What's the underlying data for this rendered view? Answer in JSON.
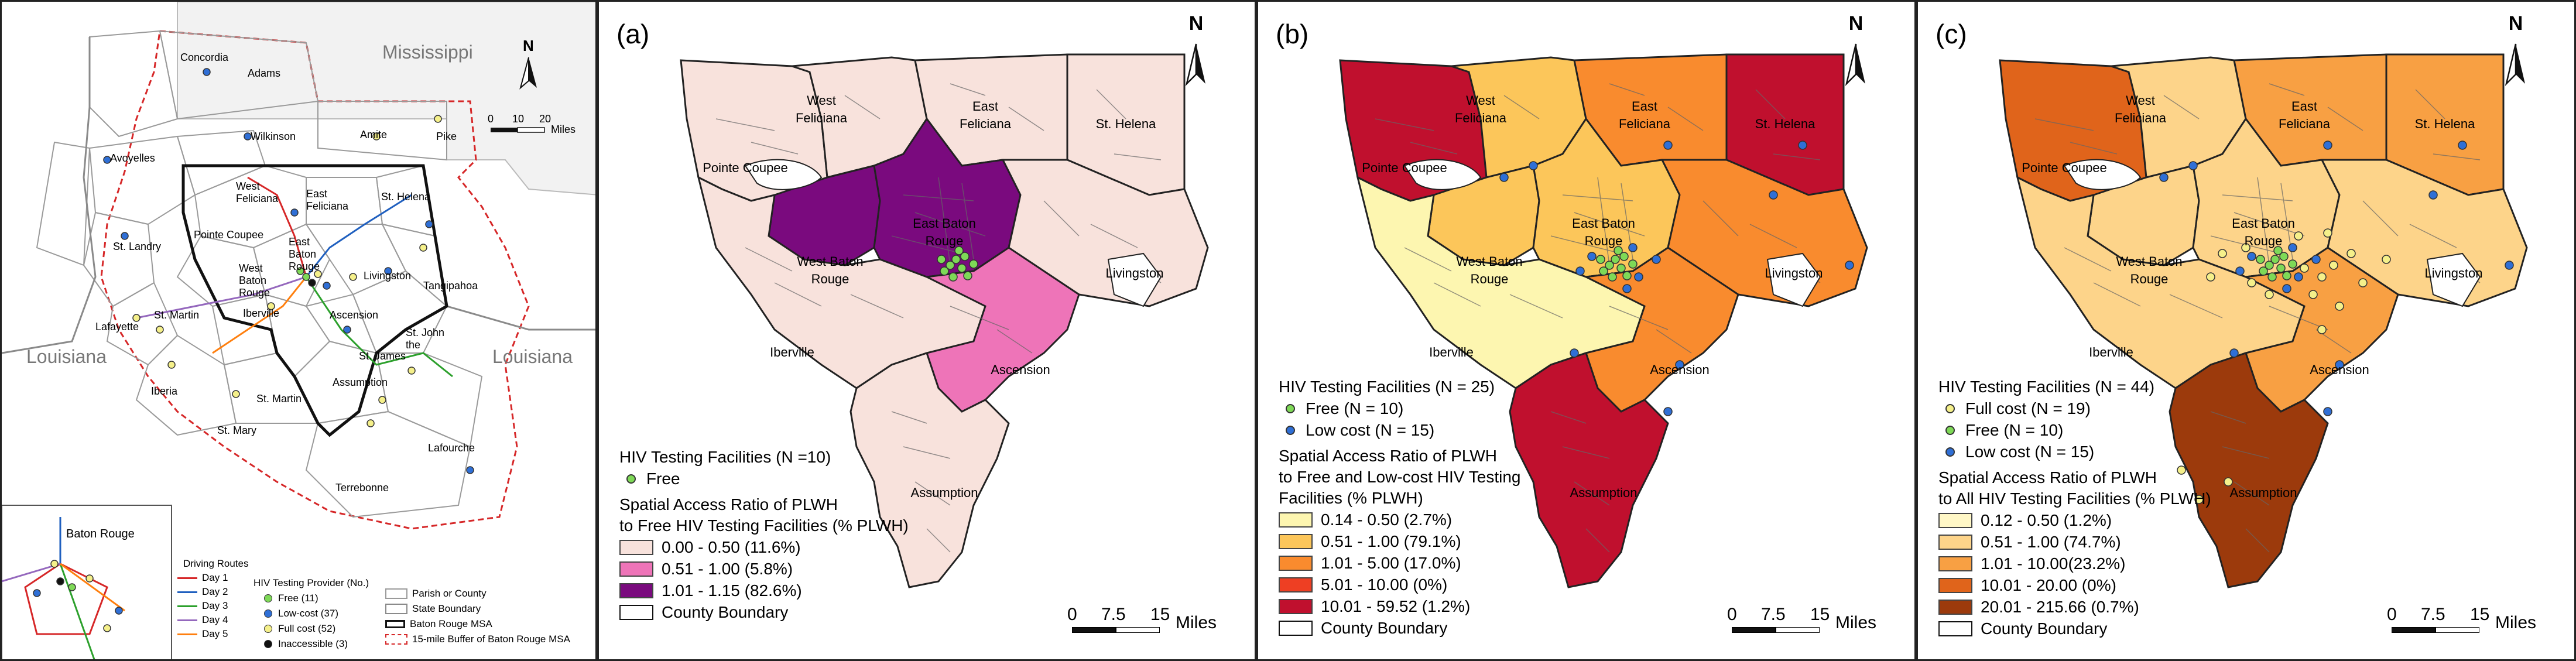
{
  "overview": {
    "states": [
      "Mississippi",
      "Louisiana",
      "Louisiana"
    ],
    "parish_labels": [
      "Concordia",
      "Adams",
      "Wilkinson",
      "Amite",
      "Pike",
      "Avoyelles",
      "West Feliciana",
      "East Feliciana",
      "St. Helena",
      "Pointe Coupee",
      "St. Landry",
      "East Baton Rouge",
      "West Baton Rouge",
      "Tangipahoa",
      "Livingston",
      "Iberville",
      "Ascension",
      "St. Martin",
      "Lafayette",
      "St. James",
      "St. John the",
      "Assumption",
      "Iberia",
      "St. Martin",
      "St. Mary",
      "Lafourche",
      "Terrebonne"
    ],
    "north": "N",
    "scale_ticks": [
      "0",
      "10",
      "20"
    ],
    "scale_unit": "Miles",
    "inset_label": "Baton Rouge",
    "driving_routes_title": "Driving Routes",
    "driving_routes": [
      {
        "label": "Day 1",
        "color": "#d62728"
      },
      {
        "label": "Day 2",
        "color": "#1f5fbf"
      },
      {
        "label": "Day 3",
        "color": "#2ca02c"
      },
      {
        "label": "Day 4",
        "color": "#9467bd"
      },
      {
        "label": "Day 5",
        "color": "#ff7f0e"
      }
    ],
    "provider_title": "HIV Testing Provider (No.)",
    "providers": [
      {
        "label": "Free (11)",
        "color": "#7ed957"
      },
      {
        "label": "Low-cost (37)",
        "color": "#2f6fd6"
      },
      {
        "label": "Full cost (52)",
        "color": "#f5f08a"
      },
      {
        "label": "Inaccessible (3)",
        "color": "#111111"
      }
    ],
    "boundary_legend": [
      "Parish or County",
      "State Boundary",
      "Baton Rouge MSA",
      "15-mile Buffer of Baton Rouge MSA"
    ]
  },
  "panels": [
    {
      "id": "a",
      "label": "(a)",
      "facility_title": "HIV Testing Facilities (N =10)",
      "facilities": [
        {
          "label": "Free",
          "color": "#7ed957"
        }
      ],
      "ratio_title_1": "Spatial Access Ratio of PLWH",
      "ratio_title_2": "to Free HIV Testing Facilities (% PLWH)",
      "ratio_title_3": "",
      "classes": [
        {
          "label": "0.00 - 0.50 (11.6%)",
          "color": "#f8e2dc"
        },
        {
          "label": "0.51 - 1.00 (5.8%)",
          "color": "#ee74b8"
        },
        {
          "label": "1.01 - 1.15 (82.6%)",
          "color": "#7a0a7e"
        }
      ],
      "boundary": "County Boundary",
      "base_color": "#f8e2dc",
      "colors": {
        "pointe_coupee": "#f8e2dc",
        "wf": "#f8e2dc",
        "ef": "#f8e2dc",
        "sth": "#f8e2dc",
        "wbr": "#7a0a7e",
        "ebr": "#7a0a7e",
        "liv": "#f8e2dc",
        "ibv": "#f8e2dc",
        "asc": "#ee74b8",
        "asm": "#f8e2dc"
      }
    },
    {
      "id": "b",
      "label": "(b)",
      "facility_title": "HIV Testing Facilities (N = 25)",
      "facilities": [
        {
          "label": "Free (N = 10)",
          "color": "#7ed957"
        },
        {
          "label": "Low cost (N = 15)",
          "color": "#2f6fd6"
        }
      ],
      "ratio_title_1": "Spatial Access Ratio of PLWH",
      "ratio_title_2": "to Free and Low-cost HIV Testing",
      "ratio_title_3": "Facilities (% PLWH)",
      "classes": [
        {
          "label": "0.14 - 0.50  (2.7%)",
          "color": "#fdf6b0"
        },
        {
          "label": "0.51 - 1.00  (79.1%)",
          "color": "#fcc65a"
        },
        {
          "label": "1.01 - 5.00  (17.0%)",
          "color": "#f98b2e"
        },
        {
          "label": "5.01 - 10.00  (0%)",
          "color": "#ee3f23"
        },
        {
          "label": "10.01 - 59.52  (1.2%)",
          "color": "#c0102e"
        }
      ],
      "boundary": "County Boundary",
      "colors": {
        "pointe_coupee": "#c0102e",
        "wf": "#fcc65a",
        "ef": "#f98b2e",
        "sth": "#c0102e",
        "wbr": "#fcc65a",
        "ebr": "#fcc65a",
        "liv": "#f98b2e",
        "ibv": "#fdf6b0",
        "asc": "#f98b2e",
        "asm": "#c0102e"
      }
    },
    {
      "id": "c",
      "label": "(c)",
      "facility_title": "HIV Testing Facilities (N = 44)",
      "facilities": [
        {
          "label": "Full cost (N = 19)",
          "color": "#f5f08a"
        },
        {
          "label": "Free (N = 10)",
          "color": "#7ed957"
        },
        {
          "label": "Low cost (N = 15)",
          "color": "#2f6fd6"
        }
      ],
      "ratio_title_1": "Spatial Access Ratio of PLWH",
      "ratio_title_2": "to All HIV Testing Facilities (% PLWH)",
      "ratio_title_3": "",
      "classes": [
        {
          "label": "0.12 - 0.50 (1.2%)",
          "color": "#fff7c6"
        },
        {
          "label": "0.51 - 1.00 (74.7%)",
          "color": "#fdd48a"
        },
        {
          "label": "1.01 - 10.00(23.2%)",
          "color": "#f8a043"
        },
        {
          "label": "10.01 - 20.00 (0%)",
          "color": "#e0641b"
        },
        {
          "label": "20.01 - 215.66 (0.7%)",
          "color": "#9c3a0c"
        }
      ],
      "boundary": "County Boundary",
      "colors": {
        "pointe_coupee": "#e0641b",
        "wf": "#fdd48a",
        "ef": "#f8a043",
        "sth": "#f8a043",
        "wbr": "#fdd48a",
        "ebr": "#fdd48a",
        "liv": "#fdd48a",
        "ibv": "#fdd48a",
        "asc": "#f8a043",
        "asm": "#9c3a0c"
      }
    }
  ],
  "parish_names": {
    "wf_1": "West",
    "wf_2": "Feliciana",
    "ef_1": "East",
    "ef_2": "Feliciana",
    "sth": "St. Helena",
    "pc": "Pointe Coupee",
    "ebr_1": "East Baton",
    "ebr_2": "Rouge",
    "wbr_1": "West Baton",
    "wbr_2": "Rouge",
    "liv": "Livingston",
    "ibv": "Iberville",
    "asc": "Ascension",
    "asm": "Assumption"
  },
  "north": "N",
  "scale": {
    "ticks": [
      "0",
      "7.5",
      "15"
    ],
    "unit": "Miles"
  }
}
